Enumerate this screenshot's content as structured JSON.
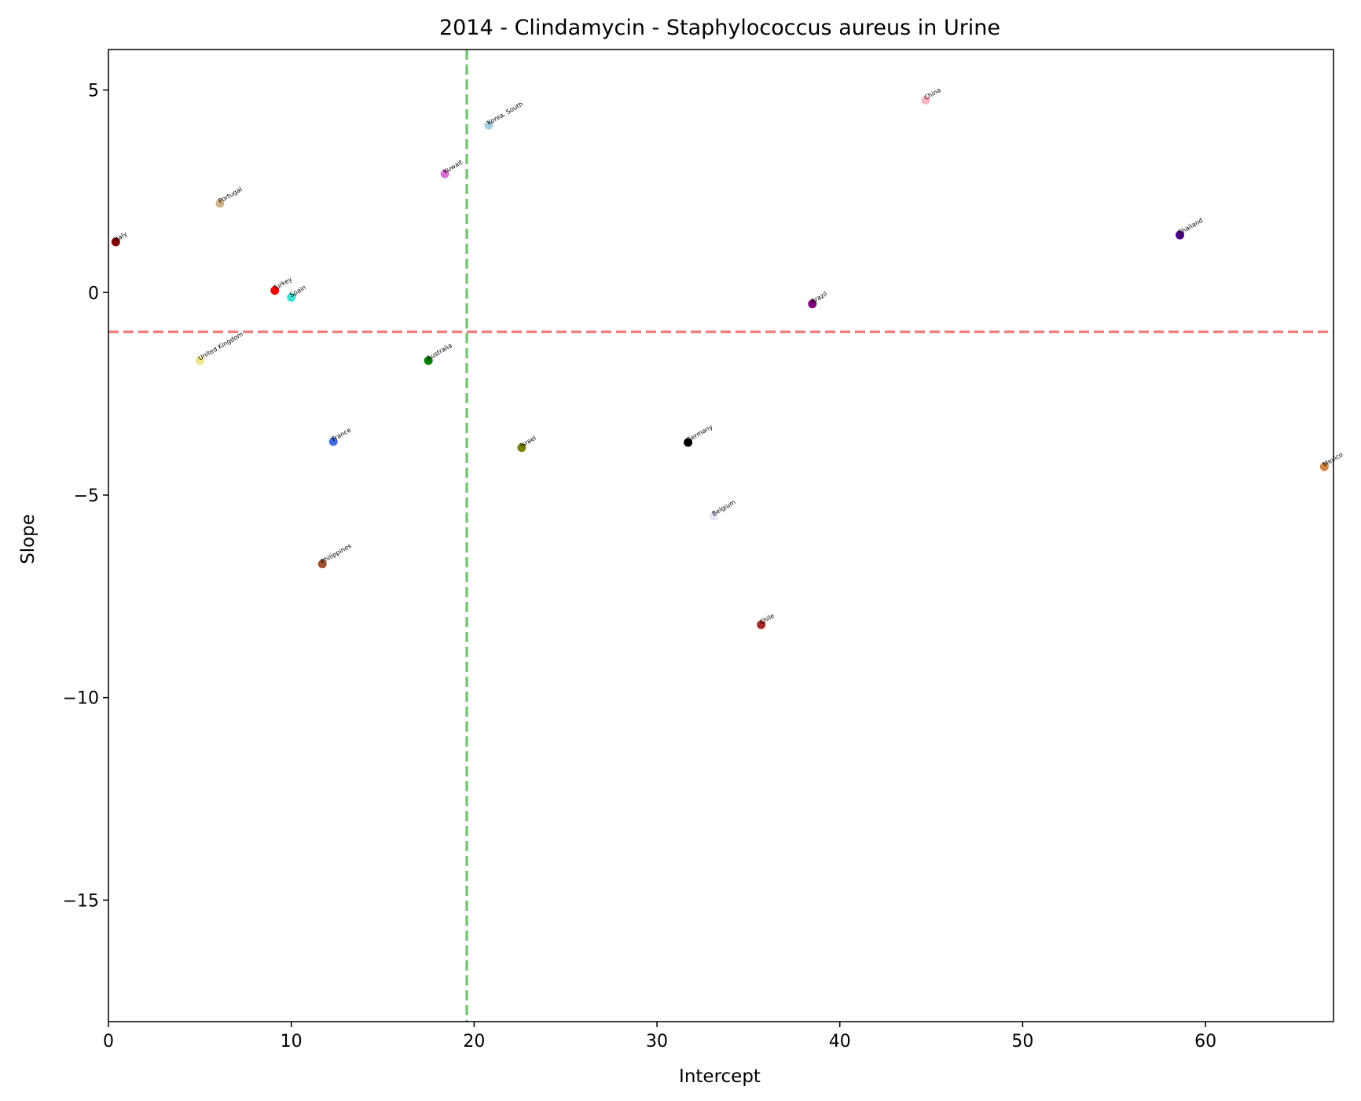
{
  "chart_data": {
    "type": "scatter",
    "title": "2014 - Clindamycin - Staphylococcus aureus in Urine",
    "xlabel": "Intercept",
    "ylabel": "Slope",
    "xlim": [
      0,
      67
    ],
    "ylim": [
      -18,
      6
    ],
    "xticks": [
      0,
      10,
      20,
      30,
      40,
      50,
      60
    ],
    "yticks": [
      5,
      0,
      -5,
      -10,
      -15
    ],
    "ytick_labels": [
      "5",
      "0",
      "−5",
      "−10",
      "−15"
    ],
    "grid": false,
    "reference_lines": [
      {
        "orientation": "horizontal",
        "value": -0.97,
        "color": "#f08080",
        "style": "dashed"
      },
      {
        "orientation": "vertical",
        "value": 19.6,
        "color": "#77c777",
        "style": "dashed"
      }
    ],
    "points": [
      {
        "label": "Italy",
        "x": 0.4,
        "y": 1.25,
        "color": "#800000"
      },
      {
        "label": "Portugal",
        "x": 6.1,
        "y": 2.2,
        "color": "#d2b48c"
      },
      {
        "label": "Turkey",
        "x": 9.1,
        "y": 0.05,
        "color": "#ff0000"
      },
      {
        "label": "Spain",
        "x": 10.0,
        "y": -0.12,
        "color": "#40e0d0"
      },
      {
        "label": "United Kingdom",
        "x": 5.0,
        "y": -1.68,
        "color": "#f0e68c"
      },
      {
        "label": "France",
        "x": 12.3,
        "y": -3.68,
        "color": "#4169e1"
      },
      {
        "label": "Philippines",
        "x": 11.7,
        "y": -6.7,
        "color": "#a0522d"
      },
      {
        "label": "Australia",
        "x": 17.5,
        "y": -1.68,
        "color": "#008000"
      },
      {
        "label": "Kuwait",
        "x": 18.4,
        "y": 2.93,
        "color": "#da70d6"
      },
      {
        "label": "Korea, South",
        "x": 20.8,
        "y": 4.13,
        "color": "#a6cee3"
      },
      {
        "label": "Israel",
        "x": 22.6,
        "y": -3.83,
        "color": "#808000"
      },
      {
        "label": "Germany",
        "x": 31.7,
        "y": -3.7,
        "color": "#000000"
      },
      {
        "label": "Belgium",
        "x": 33.1,
        "y": -5.52,
        "color": "#e6e6fa"
      },
      {
        "label": "Chile",
        "x": 35.7,
        "y": -8.2,
        "color": "#a52a2a"
      },
      {
        "label": "Brazil",
        "x": 38.5,
        "y": -0.28,
        "color": "#800080"
      },
      {
        "label": "China",
        "x": 44.7,
        "y": 4.75,
        "color": "#ffb6c1"
      },
      {
        "label": "Thailand",
        "x": 58.6,
        "y": 1.42,
        "color": "#4b0082"
      },
      {
        "label": "Mexico",
        "x": 66.5,
        "y": -4.3,
        "color": "#cd853f"
      }
    ]
  }
}
